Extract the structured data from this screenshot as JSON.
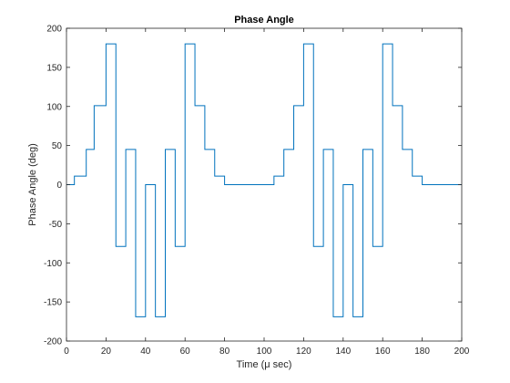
{
  "chart_data": {
    "type": "line",
    "title": "Phase Angle",
    "xlabel": "Time (μ sec)",
    "ylabel": "Phase Angle (deg)",
    "xlim": [
      0,
      200
    ],
    "ylim": [
      -200,
      200
    ],
    "xticks": [
      0,
      20,
      40,
      60,
      80,
      100,
      120,
      140,
      160,
      180,
      200
    ],
    "yticks": [
      -200,
      -150,
      -100,
      -50,
      0,
      50,
      100,
      150,
      200
    ],
    "grid": false,
    "step": "post",
    "series": [
      {
        "color": "#0072bd",
        "x": [
          0,
          4,
          10,
          14,
          20,
          24,
          25,
          29,
          30,
          34,
          35,
          39,
          40,
          44,
          45,
          49,
          50,
          54,
          55,
          59,
          60,
          64,
          65,
          69,
          70,
          74,
          75,
          79,
          80,
          104,
          105,
          109,
          110,
          114,
          115,
          119,
          120,
          124,
          125,
          129,
          130,
          134,
          135,
          139,
          140,
          144,
          145,
          149,
          150,
          154,
          155,
          159,
          160,
          164,
          165,
          169,
          170,
          174,
          175,
          179,
          180,
          200
        ],
        "y": [
          0,
          11,
          45,
          101,
          180,
          180,
          -79,
          -79,
          45,
          45,
          -169,
          -169,
          0,
          0,
          -169,
          -169,
          45,
          45,
          -79,
          -79,
          180,
          180,
          101,
          101,
          45,
          45,
          11,
          11,
          0,
          0,
          11,
          11,
          45,
          45,
          101,
          101,
          180,
          180,
          -79,
          -79,
          45,
          45,
          -169,
          -169,
          0,
          0,
          -169,
          -169,
          45,
          45,
          -79,
          -79,
          180,
          180,
          101,
          101,
          45,
          45,
          11,
          11,
          0,
          0
        ]
      }
    ]
  }
}
